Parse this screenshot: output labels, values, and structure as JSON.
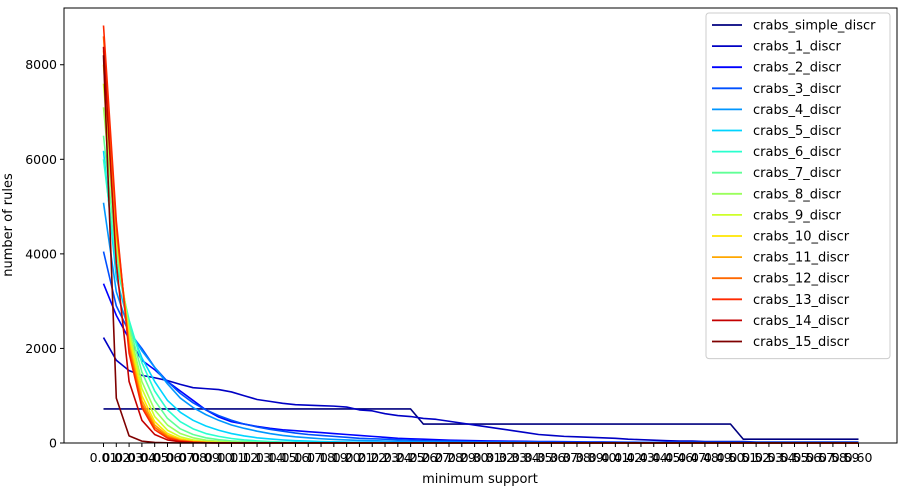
{
  "chart_data": {
    "type": "line",
    "title": "",
    "xlabel": "minimum support",
    "ylabel": "number of rules",
    "ylim": [
      0,
      9200
    ],
    "y_ticks": [
      0,
      2000,
      4000,
      6000,
      8000
    ],
    "x_tick_labels": [
      "0.01",
      "0.02",
      "0.03",
      "0.04",
      "0.05",
      "0.06",
      "0.07",
      "0.08",
      "0.09",
      "0.10",
      "0.11",
      "0.12",
      "0.13",
      "0.14",
      "0.15",
      "0.16",
      "0.17",
      "0.18",
      "0.19",
      "0.20",
      "0.21",
      "0.22",
      "0.23",
      "0.24",
      "0.25",
      "0.26",
      "0.27",
      "0.28",
      "0.29",
      "0.30",
      "0.31",
      "0.32",
      "0.33",
      "0.34",
      "0.35",
      "0.36",
      "0.37",
      "0.38",
      "0.39",
      "0.40",
      "0.41",
      "0.42",
      "0.43",
      "0.44",
      "0.45",
      "0.46",
      "0.47",
      "0.48",
      "0.49",
      "0.50",
      "0.51",
      "0.52",
      "0.53",
      "0.54",
      "0.55",
      "0.56",
      "0.57",
      "0.58",
      "0.59",
      "0.60"
    ],
    "legend_position": "top-right",
    "grid": false,
    "x": [
      0.01,
      0.02,
      0.03,
      0.04,
      0.05,
      0.06,
      0.07,
      0.08,
      0.09,
      0.1,
      0.11,
      0.12,
      0.13,
      0.14,
      0.15,
      0.16,
      0.17,
      0.18,
      0.19,
      0.2,
      0.21,
      0.22,
      0.23,
      0.24,
      0.25,
      0.26,
      0.27,
      0.28,
      0.29,
      0.3,
      0.31,
      0.32,
      0.33,
      0.34,
      0.35,
      0.36,
      0.37,
      0.38,
      0.39,
      0.4,
      0.41,
      0.42,
      0.43,
      0.44,
      0.45,
      0.46,
      0.47,
      0.48,
      0.49,
      0.5,
      0.51,
      0.52,
      0.53,
      0.54,
      0.55,
      0.56,
      0.57,
      0.58,
      0.59,
      0.6
    ],
    "series": [
      {
        "name": "crabs_simple_discr",
        "color": "#00007f",
        "values": [
          720,
          720,
          720,
          720,
          720,
          720,
          720,
          720,
          720,
          720,
          720,
          720,
          720,
          720,
          720,
          720,
          720,
          720,
          720,
          720,
          720,
          720,
          720,
          720,
          720,
          400,
          400,
          400,
          400,
          400,
          400,
          400,
          400,
          400,
          400,
          400,
          400,
          400,
          400,
          400,
          400,
          400,
          400,
          400,
          400,
          400,
          400,
          400,
          400,
          400,
          80,
          80,
          80,
          80,
          80,
          80,
          80,
          80,
          80,
          80
        ]
      },
      {
        "name": "crabs_1_discr",
        "color": "#0000c4",
        "values": [
          2230,
          1750,
          1530,
          1430,
          1380,
          1320,
          1240,
          1170,
          1150,
          1130,
          1080,
          1000,
          920,
          880,
          840,
          810,
          800,
          790,
          780,
          760,
          700,
          680,
          620,
          580,
          560,
          520,
          500,
          460,
          420,
          380,
          340,
          300,
          260,
          220,
          180,
          160,
          140,
          130,
          120,
          110,
          100,
          80,
          70,
          60,
          50,
          40,
          40,
          30,
          30,
          30,
          30,
          20,
          20,
          20,
          20,
          20,
          20,
          20,
          20,
          20
        ]
      },
      {
        "name": "crabs_2_discr",
        "color": "#0000ff",
        "values": [
          3370,
          2700,
          2200,
          1750,
          1550,
          1300,
          1100,
          900,
          700,
          550,
          450,
          400,
          350,
          310,
          280,
          260,
          240,
          220,
          200,
          180,
          160,
          140,
          120,
          100,
          90,
          80,
          70,
          60,
          55,
          50,
          45,
          40,
          38,
          35,
          32,
          30,
          28,
          26,
          24,
          22,
          20,
          18,
          16,
          14,
          12,
          10,
          10,
          10,
          10,
          10,
          10,
          10,
          10,
          10,
          10,
          10,
          10,
          10,
          10,
          10
        ]
      },
      {
        "name": "crabs_3_discr",
        "color": "#0050ff",
        "values": [
          4050,
          2900,
          2350,
          2000,
          1600,
          1300,
          1050,
          850,
          700,
          580,
          480,
          400,
          340,
          290,
          250,
          210,
          180,
          160,
          140,
          120,
          100,
          90,
          80,
          70,
          60,
          50,
          45,
          40,
          35,
          30,
          28,
          26,
          24,
          22,
          20,
          18,
          16,
          14,
          12,
          10,
          10,
          10,
          10,
          10,
          10,
          10,
          10,
          10,
          10,
          10,
          10,
          10,
          10,
          10,
          10,
          10,
          10,
          10,
          10,
          10
        ]
      },
      {
        "name": "crabs_4_discr",
        "color": "#0096ff",
        "values": [
          5080,
          3200,
          2400,
          1950,
          1600,
          1250,
          950,
          750,
          600,
          480,
          380,
          310,
          250,
          200,
          160,
          130,
          110,
          90,
          75,
          65,
          55,
          48,
          42,
          36,
          30,
          26,
          22,
          18,
          15,
          12,
          10,
          10,
          10,
          10,
          10,
          10,
          10,
          10,
          10,
          10,
          10,
          10,
          10,
          10,
          10,
          10,
          10,
          10,
          10,
          10,
          10,
          10,
          10,
          10,
          10,
          10,
          10,
          10,
          10,
          10
        ]
      },
      {
        "name": "crabs_5_discr",
        "color": "#00d4ff",
        "values": [
          6180,
          3500,
          2500,
          1800,
          1300,
          900,
          650,
          480,
          360,
          270,
          200,
          150,
          110,
          85,
          65,
          50,
          40,
          32,
          26,
          20,
          16,
          12,
          10,
          8,
          6,
          5,
          4,
          3,
          2,
          1,
          1,
          1,
          1,
          1,
          1,
          1,
          1,
          1,
          1,
          1,
          1,
          1,
          1,
          1,
          1,
          1,
          1,
          1,
          1,
          1,
          1,
          1,
          1,
          1,
          1,
          1,
          1,
          1,
          1,
          1
        ]
      },
      {
        "name": "crabs_6_discr",
        "color": "#29ffce",
        "values": [
          6000,
          3800,
          2600,
          1700,
          1100,
          700,
          450,
          300,
          200,
          140,
          95,
          65,
          45,
          30,
          20,
          14,
          10,
          7,
          5,
          3,
          2,
          1,
          1,
          1,
          1,
          1,
          1,
          1,
          1,
          1,
          1,
          1,
          1,
          1,
          1,
          1,
          1,
          1,
          1,
          1,
          1,
          1,
          1,
          1,
          1,
          1,
          1,
          1,
          1,
          1,
          1,
          1,
          1,
          1,
          1,
          1,
          1,
          1,
          1,
          1
        ]
      },
      {
        "name": "crabs_7_discr",
        "color": "#60ff96",
        "values": [
          6500,
          4000,
          2500,
          1500,
          900,
          520,
          300,
          180,
          110,
          70,
          45,
          30,
          20,
          12,
          8,
          5,
          3,
          2,
          1,
          1,
          1,
          1,
          1,
          1,
          1,
          1,
          1,
          1,
          1,
          1,
          1,
          1,
          1,
          1,
          1,
          1,
          1,
          1,
          1,
          1,
          1,
          1,
          1,
          1,
          1,
          1,
          1,
          1,
          1,
          1,
          1,
          1,
          1,
          1,
          1,
          1,
          1,
          1,
          1,
          1
        ]
      },
      {
        "name": "crabs_8_discr",
        "color": "#9aff5c",
        "values": [
          7100,
          4200,
          2400,
          1300,
          700,
          380,
          200,
          110,
          60,
          35,
          20,
          12,
          7,
          4,
          2,
          1,
          1,
          1,
          1,
          1,
          1,
          1,
          1,
          1,
          1,
          1,
          1,
          1,
          1,
          1,
          1,
          1,
          1,
          1,
          1,
          1,
          1,
          1,
          1,
          1,
          1,
          1,
          1,
          1,
          1,
          1,
          1,
          1,
          1,
          1,
          1,
          1,
          1,
          1,
          1,
          1,
          1,
          1,
          1,
          1
        ]
      },
      {
        "name": "crabs_9_discr",
        "color": "#ceff29",
        "values": [
          7600,
          4300,
          2300,
          1150,
          560,
          270,
          130,
          65,
          32,
          16,
          8,
          4,
          2,
          1,
          1,
          1,
          1,
          1,
          1,
          1,
          1,
          1,
          1,
          1,
          1,
          1,
          1,
          1,
          1,
          1,
          1,
          1,
          1,
          1,
          1,
          1,
          1,
          1,
          1,
          1,
          1,
          1,
          1,
          1,
          1,
          1,
          1,
          1,
          1,
          1,
          1,
          1,
          1,
          1,
          1,
          1,
          1,
          1,
          1,
          1
        ]
      },
      {
        "name": "crabs_10_discr",
        "color": "#ffe600",
        "values": [
          8000,
          4400,
          2200,
          1000,
          450,
          200,
          90,
          40,
          18,
          8,
          4,
          2,
          1,
          1,
          1,
          1,
          1,
          1,
          1,
          1,
          1,
          1,
          1,
          1,
          1,
          1,
          1,
          1,
          1,
          1,
          1,
          1,
          1,
          1,
          1,
          1,
          1,
          1,
          1,
          1,
          1,
          1,
          1,
          1,
          1,
          1,
          1,
          1,
          1,
          1,
          1,
          1,
          1,
          1,
          1,
          1,
          1,
          1,
          1,
          1
        ]
      },
      {
        "name": "crabs_11_discr",
        "color": "#ffa700",
        "values": [
          8300,
          4500,
          2100,
          900,
          380,
          160,
          65,
          28,
          12,
          5,
          2,
          1,
          1,
          1,
          1,
          1,
          1,
          1,
          1,
          1,
          1,
          1,
          1,
          1,
          1,
          1,
          1,
          1,
          1,
          1,
          1,
          1,
          1,
          1,
          1,
          1,
          1,
          1,
          1,
          1,
          1,
          1,
          1,
          1,
          1,
          1,
          1,
          1,
          1,
          1,
          1,
          1,
          1,
          1,
          1,
          1,
          1,
          1,
          1,
          1
        ]
      },
      {
        "name": "crabs_12_discr",
        "color": "#ff6800",
        "values": [
          8600,
          4600,
          2000,
          820,
          330,
          130,
          50,
          20,
          8,
          3,
          1,
          1,
          1,
          1,
          1,
          1,
          1,
          1,
          1,
          1,
          1,
          1,
          1,
          1,
          1,
          1,
          1,
          1,
          1,
          1,
          1,
          1,
          1,
          1,
          1,
          1,
          1,
          1,
          1,
          1,
          1,
          1,
          1,
          1,
          1,
          1,
          1,
          1,
          1,
          1,
          1,
          1,
          1,
          1,
          1,
          1,
          1,
          1,
          1,
          1
        ]
      },
      {
        "name": "crabs_13_discr",
        "color": "#ff2900",
        "values": [
          8830,
          4700,
          1900,
          750,
          280,
          105,
          40,
          15,
          6,
          2,
          1,
          1,
          1,
          1,
          1,
          1,
          1,
          1,
          1,
          1,
          1,
          1,
          1,
          1,
          1,
          1,
          1,
          1,
          1,
          1,
          1,
          1,
          1,
          1,
          1,
          1,
          1,
          1,
          1,
          1,
          1,
          1,
          1,
          1,
          1,
          1,
          1,
          1,
          1,
          1,
          1,
          1,
          1,
          1,
          1,
          1,
          1,
          1,
          1,
          1
        ]
      },
      {
        "name": "crabs_14_discr",
        "color": "#c40000",
        "values": [
          8380,
          3800,
          1300,
          480,
          180,
          65,
          25,
          9,
          3,
          1,
          1,
          1,
          1,
          1,
          1,
          1,
          1,
          1,
          1,
          1,
          1,
          1,
          1,
          1,
          1,
          1,
          1,
          1,
          1,
          1,
          1,
          1,
          1,
          1,
          1,
          1,
          1,
          1,
          1,
          1,
          1,
          1,
          1,
          1,
          1,
          1,
          1,
          1,
          1,
          1,
          1,
          1,
          1,
          1,
          1,
          1,
          1,
          1,
          1,
          1
        ]
      },
      {
        "name": "crabs_15_discr",
        "color": "#7f0000",
        "values": [
          8200,
          950,
          150,
          40,
          12,
          4,
          1,
          1,
          1,
          1,
          1,
          1,
          1,
          1,
          1,
          1,
          1,
          1,
          1,
          1,
          1,
          1,
          1,
          1,
          1,
          1,
          1,
          1,
          1,
          1,
          1,
          1,
          1,
          1,
          1,
          1,
          1,
          1,
          1,
          1,
          1,
          1,
          1,
          1,
          1,
          1,
          1,
          1,
          1,
          1,
          1,
          1,
          1,
          1,
          1,
          1,
          1,
          1,
          1,
          1
        ]
      }
    ]
  }
}
